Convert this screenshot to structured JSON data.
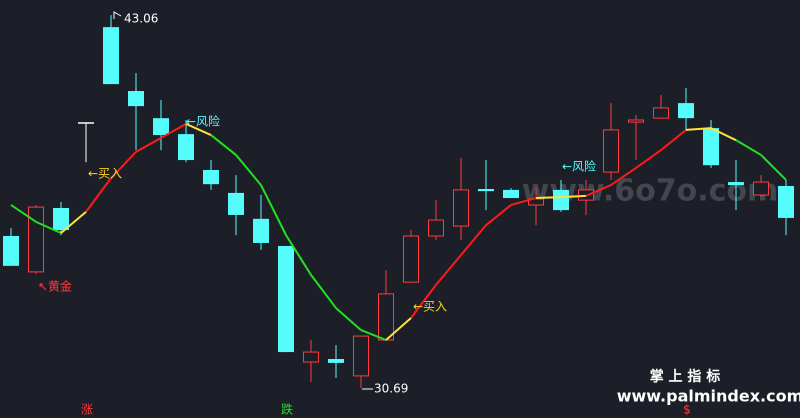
{
  "chart_data": {
    "type": "candlestick",
    "open": [
      35.73,
      34.54,
      36.66,
      39.48,
      42.66,
      40.54,
      39.64,
      39.11,
      37.92,
      37.16,
      36.3,
      35.4,
      31.55,
      31.65,
      31.09,
      32.28,
      34.2,
      35.73,
      36.06,
      37.29,
      37.26,
      36.76,
      37.26,
      36.92,
      37.85,
      39.51,
      39.64,
      40.14,
      39.31,
      37.52,
      37.09,
      37.39
    ],
    "high": [
      35.99,
      36.76,
      36.86,
      39.48,
      43.06,
      41.14,
      40.24,
      39.58,
      38.25,
      37.75,
      37.09,
      35.4,
      32.28,
      32.11,
      32.41,
      34.6,
      35.93,
      36.92,
      38.32,
      38.25,
      37.32,
      37.32,
      37.59,
      37.59,
      40.14,
      39.74,
      40.41,
      40.64,
      39.58,
      38.25,
      37.75,
      37.59
    ],
    "low": [
      34.74,
      34.47,
      35.76,
      38.18,
      40.77,
      38.58,
      38.58,
      38.18,
      37.26,
      35.76,
      35.27,
      31.88,
      30.89,
      31.02,
      30.69,
      32.28,
      34.2,
      35.6,
      35.6,
      36.59,
      36.99,
      36.09,
      36.53,
      36.43,
      37.59,
      38.25,
      39.64,
      39.25,
      37.99,
      36.59,
      37.02,
      35.76
    ],
    "close": [
      34.74,
      36.69,
      35.93,
      39.48,
      40.77,
      40.04,
      39.08,
      38.25,
      37.45,
      36.43,
      35.5,
      31.88,
      31.88,
      31.52,
      32.41,
      33.81,
      35.73,
      36.26,
      37.26,
      37.22,
      36.99,
      36.96,
      36.59,
      37.26,
      39.25,
      39.58,
      39.98,
      39.64,
      38.08,
      37.42,
      37.52,
      36.33
    ],
    "up_color": "#ff3b3b",
    "down_color": "#54fcfc",
    "doji_color": "#ffffff",
    "ma": {
      "values": [
        36.76,
        36.2,
        35.83,
        36.53,
        37.65,
        38.52,
        38.98,
        39.45,
        39.08,
        38.42,
        37.42,
        35.76,
        34.44,
        33.34,
        32.61,
        32.28,
        33.01,
        34.11,
        35.1,
        36.09,
        36.76,
        36.99,
        37.02,
        37.06,
        37.42,
        37.99,
        38.58,
        39.25,
        39.31,
        38.91,
        38.42,
        37.59
      ],
      "rise_color": "#ff1a1a",
      "fall_color": "#22e022",
      "turn_color": "#ffe23a"
    },
    "ylim": [
      30.29,
      43.56
    ],
    "annotations": [
      "←买入",
      "←风险",
      "↖黄金",
      "←买入",
      "←风险"
    ],
    "markers": [
      "涨",
      "跌",
      "$"
    ],
    "watermark": "www.6o7o.com",
    "brand": "掌 上 指 标",
    "brand_url": "www.palmindex.com"
  }
}
